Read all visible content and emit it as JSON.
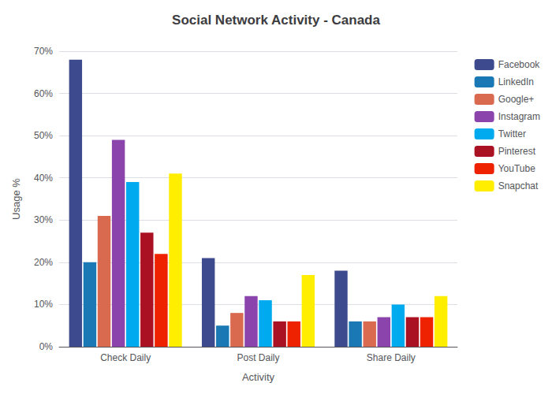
{
  "chart_data": {
    "type": "bar",
    "title": "Social Network Activity - Canada",
    "xlabel": "Activity",
    "ylabel": "Usage %",
    "categories": [
      "Check Daily",
      "Post Daily",
      "Share Daily"
    ],
    "series": [
      {
        "name": "Facebook",
        "color": "#3d4b8e",
        "values": [
          68,
          21,
          18
        ]
      },
      {
        "name": "LinkedIn",
        "color": "#1a78b4",
        "values": [
          20,
          5,
          6
        ]
      },
      {
        "name": "Google+",
        "color": "#d9694f",
        "values": [
          31,
          8,
          6
        ]
      },
      {
        "name": "Instagram",
        "color": "#8b44ac",
        "values": [
          49,
          12,
          7
        ]
      },
      {
        "name": "Twitter",
        "color": "#00aaee",
        "values": [
          39,
          11,
          10
        ]
      },
      {
        "name": "Pinterest",
        "color": "#aa1122",
        "values": [
          27,
          6,
          7
        ]
      },
      {
        "name": "YouTube",
        "color": "#ee2200",
        "values": [
          22,
          6,
          7
        ]
      },
      {
        "name": "Snapchat",
        "color": "#ffee00",
        "values": [
          41,
          17,
          12
        ]
      }
    ],
    "ylim": [
      0,
      70
    ],
    "yticks": [
      {
        "value": 0,
        "label": "0%"
      },
      {
        "value": 10,
        "label": "10%"
      },
      {
        "value": 20,
        "label": "20%"
      },
      {
        "value": 30,
        "label": "30%"
      },
      {
        "value": 40,
        "label": "40%"
      },
      {
        "value": 50,
        "label": "50%"
      },
      {
        "value": 60,
        "label": "60%"
      },
      {
        "value": 70,
        "label": "70%"
      }
    ],
    "grid": true,
    "legend": "right"
  }
}
